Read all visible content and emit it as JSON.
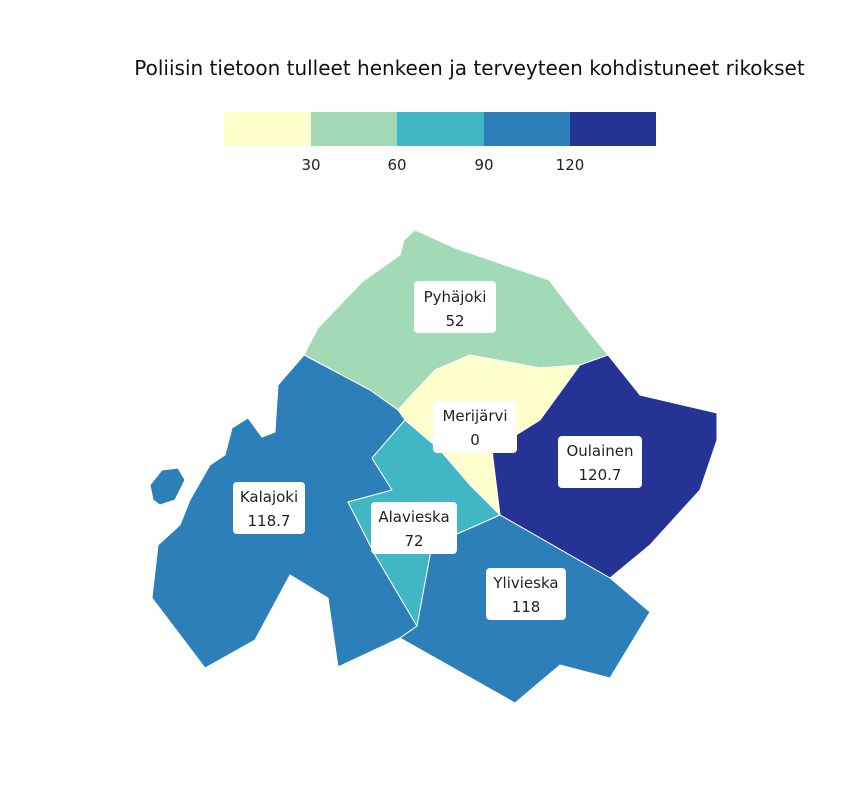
{
  "chart_data": {
    "type": "choropleth",
    "title": "Poliisin tietoon tulleet henkeen ja terveyteen kohdistuneet rikokset",
    "legend": {
      "breaks": [
        "30",
        "60",
        "90",
        "120"
      ],
      "colors": [
        "#ffffcc",
        "#a1dab4",
        "#41b6c4",
        "#2c7fb8",
        "#253494"
      ]
    },
    "regions": [
      {
        "name": "Pyhäjoki",
        "value": 52,
        "value_label": "52"
      },
      {
        "name": "Merijärvi",
        "value": 0,
        "value_label": "0"
      },
      {
        "name": "Oulainen",
        "value": 120.7,
        "value_label": "120.7"
      },
      {
        "name": "Kalajoki",
        "value": 118.7,
        "value_label": "118.7"
      },
      {
        "name": "Alavieska",
        "value": 72,
        "value_label": "72"
      },
      {
        "name": "Ylivieska",
        "value": 118,
        "value_label": "118"
      }
    ]
  }
}
